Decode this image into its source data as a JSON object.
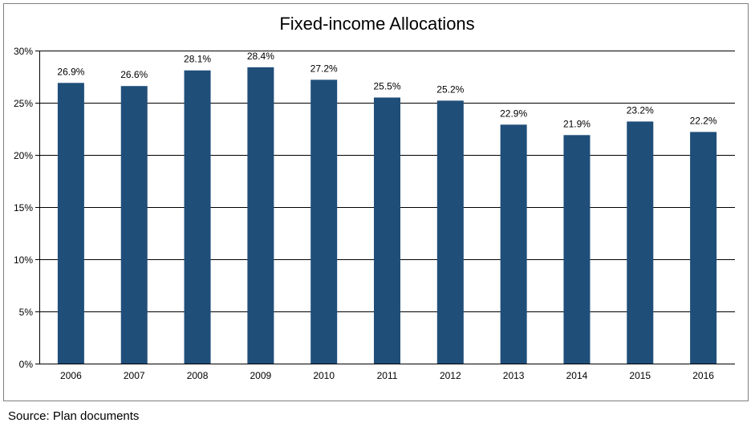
{
  "chart_data": {
    "type": "bar",
    "title": "Fixed-income Allocations",
    "xlabel": "",
    "ylabel": "",
    "categories": [
      "2006",
      "2007",
      "2008",
      "2009",
      "2010",
      "2011",
      "2012",
      "2013",
      "2014",
      "2015",
      "2016"
    ],
    "values": [
      26.9,
      26.6,
      28.1,
      28.4,
      27.2,
      25.5,
      25.2,
      22.9,
      21.9,
      23.2,
      22.2
    ],
    "data_labels": [
      "26.9%",
      "26.6%",
      "28.1%",
      "28.4%",
      "27.2%",
      "25.5%",
      "25.2%",
      "22.9%",
      "21.9%",
      "23.2%",
      "22.2%"
    ],
    "ylim": [
      0,
      30
    ],
    "y_ticks": [
      0,
      5,
      10,
      15,
      20,
      25,
      30
    ],
    "y_tick_labels": [
      "0%",
      "5%",
      "10%",
      "15%",
      "20%",
      "25%",
      "30%"
    ],
    "grid": true,
    "legend": "none",
    "bar_color": "#1f4e79",
    "grid_color": "#000000"
  },
  "source": "Source: Plan documents"
}
